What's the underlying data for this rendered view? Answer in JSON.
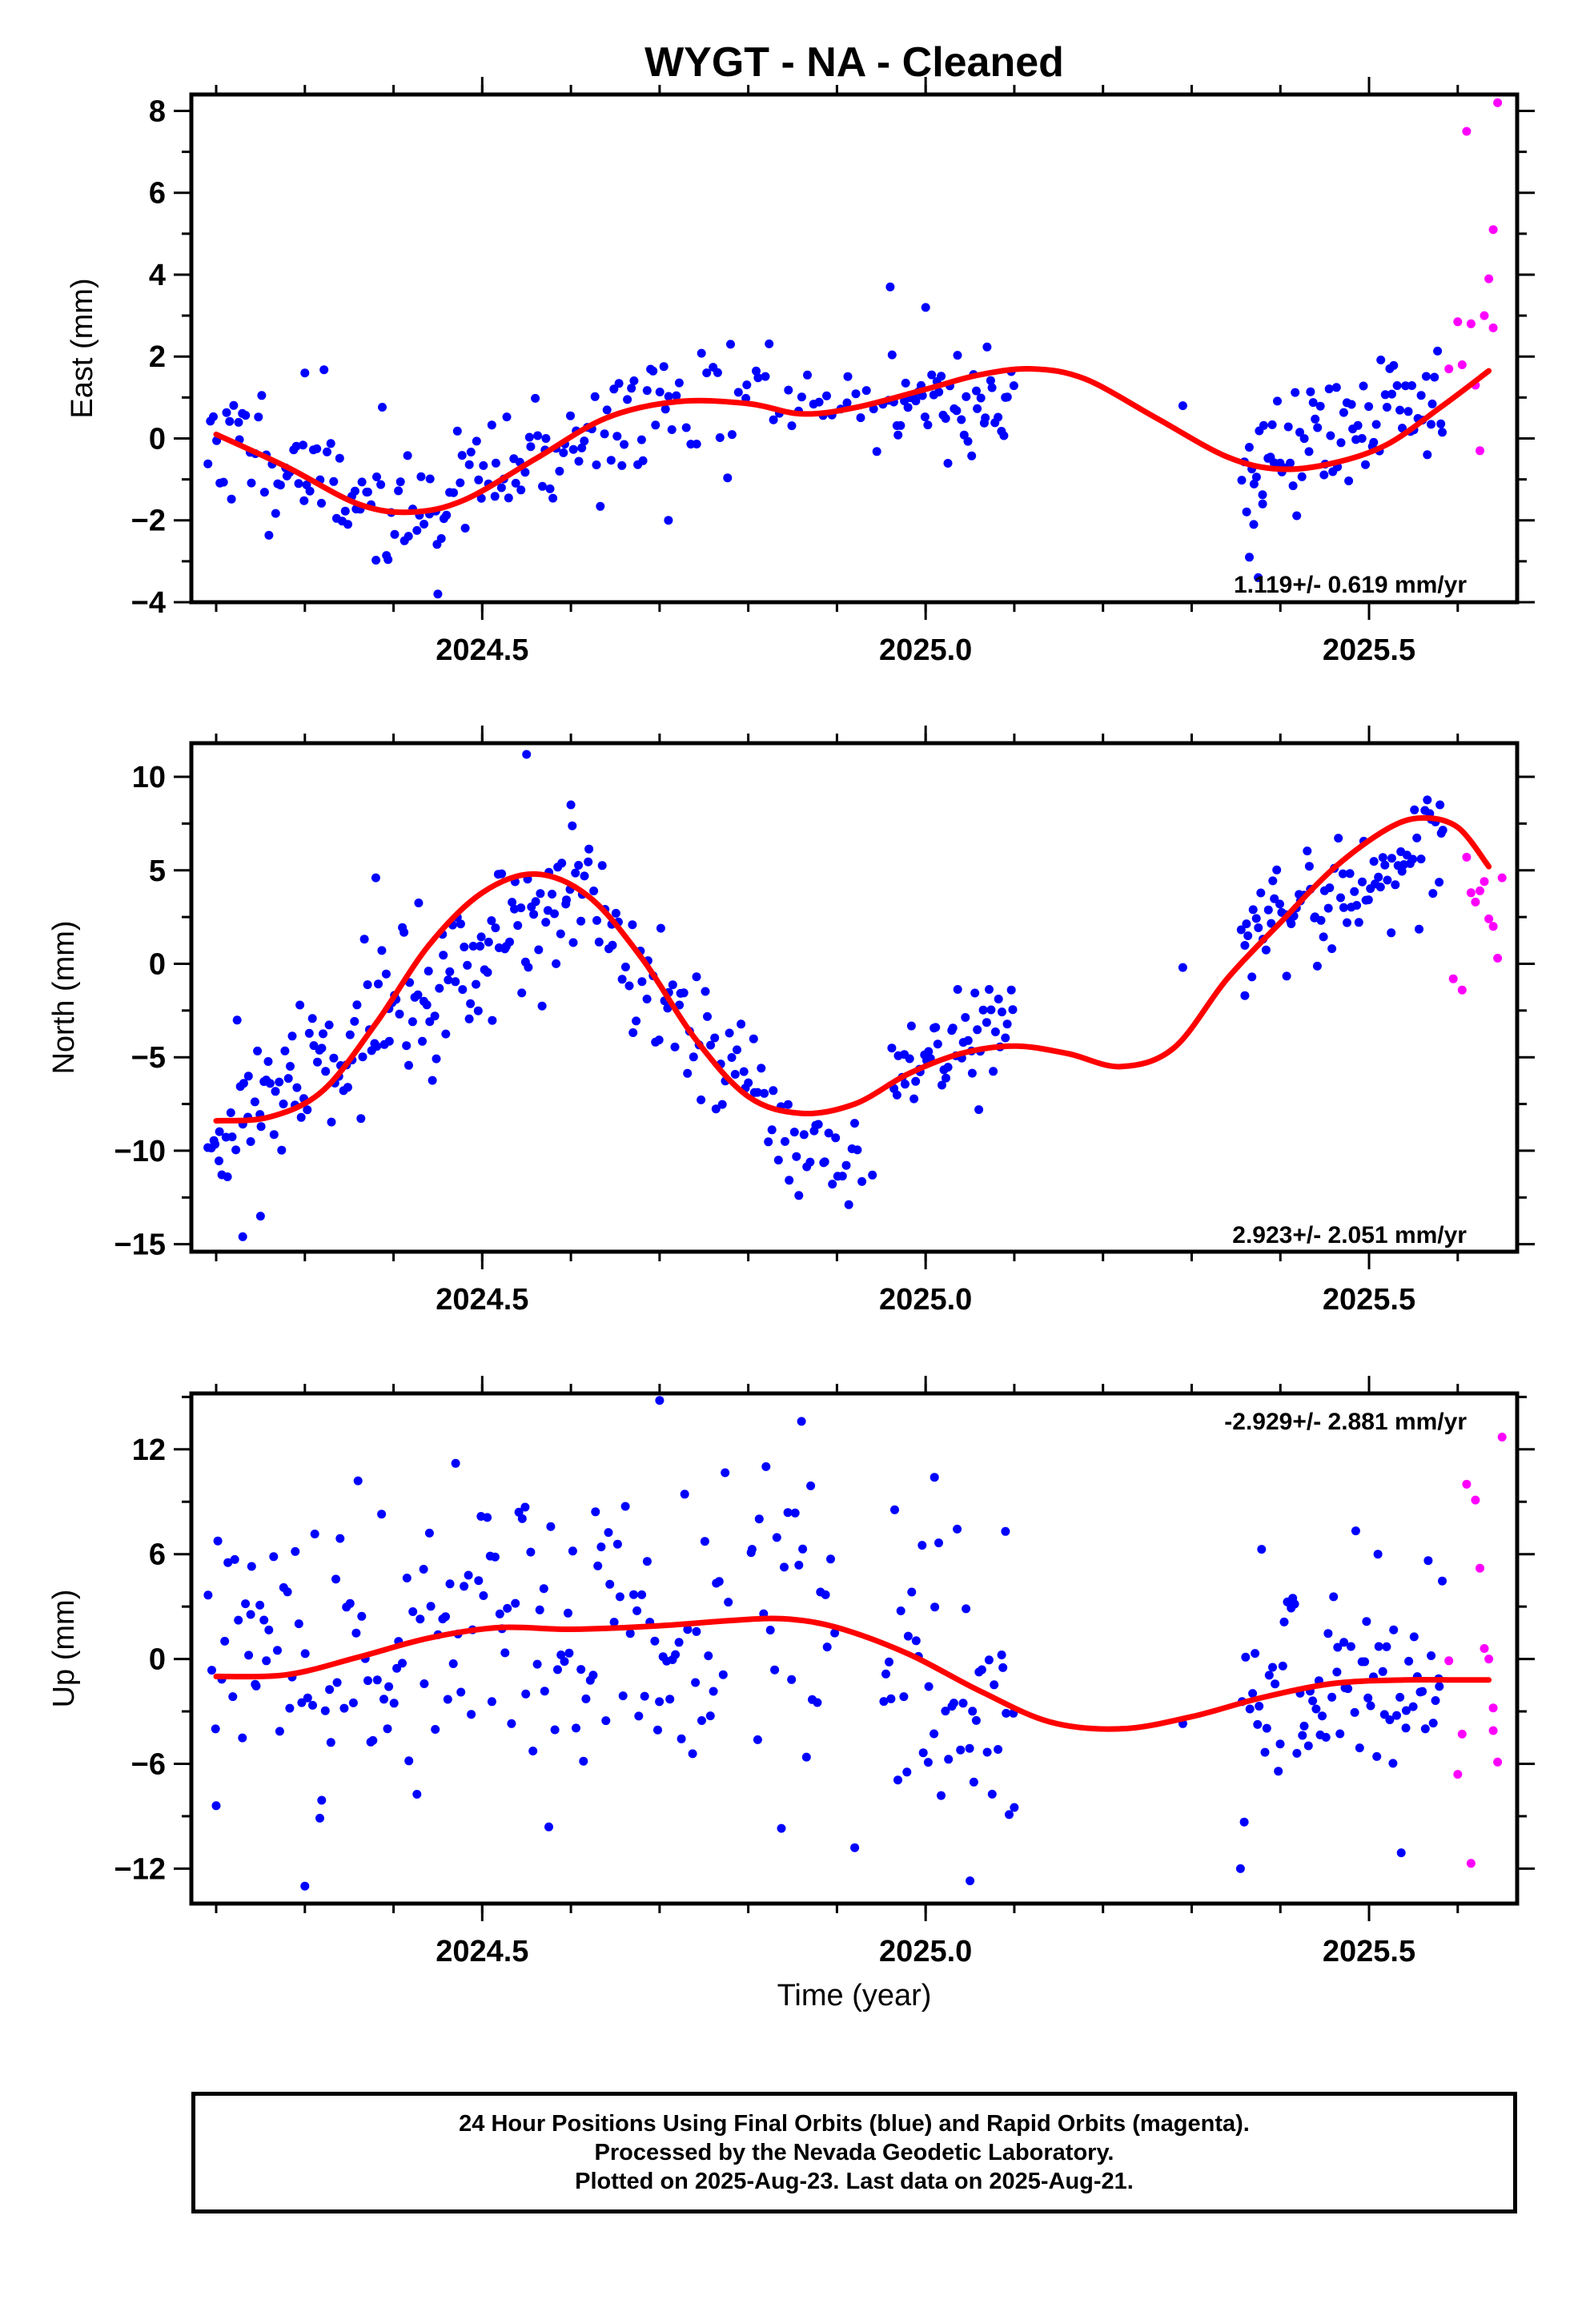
{
  "title": "WYGT  - NA - Cleaned",
  "xlabel": "Time (year)",
  "caption": [
    "24 Hour Positions Using Final Orbits (blue) and Rapid Orbits (magenta).",
    "Processed by the Nevada Geodetic Laboratory.",
    "Plotted on 2025-Aug-23. Last data on 2025-Aug-21."
  ],
  "colors": {
    "final_orbits": "#0000ff",
    "rapid_orbits": "#ff00ff",
    "model": "#ff0000",
    "frame": "#000000"
  },
  "chart_data": [
    {
      "type": "scatter",
      "ylabel": "East (mm)",
      "rate_label": "1.119+/- 0.619 mm/yr",
      "xlim": [
        2024.172,
        2025.667
      ],
      "ylim": [
        -4,
        8.4
      ],
      "xticks": [
        2024.5,
        2025.0,
        2025.5
      ],
      "xtick_labels": [
        "2024.5",
        "2025.0",
        "2025.5"
      ],
      "yticks": [
        -4,
        -2,
        0,
        2,
        4,
        6,
        8
      ],
      "ytick_labels": [
        "−4",
        "−2",
        "0",
        "2",
        "4",
        "6",
        "8"
      ],
      "model_knots": [
        [
          2024.2,
          0.1
        ],
        [
          2024.28,
          -0.7
        ],
        [
          2024.36,
          -1.6
        ],
        [
          2024.42,
          -1.8
        ],
        [
          2024.48,
          -1.5
        ],
        [
          2024.56,
          -0.5
        ],
        [
          2024.64,
          0.5
        ],
        [
          2024.72,
          0.9
        ],
        [
          2024.8,
          0.85
        ],
        [
          2024.86,
          0.6
        ],
        [
          2024.92,
          0.75
        ],
        [
          2025.0,
          1.2
        ],
        [
          2025.06,
          1.55
        ],
        [
          2025.12,
          1.7
        ],
        [
          2025.18,
          1.45
        ],
        [
          2025.26,
          0.5
        ],
        [
          2025.34,
          -0.45
        ],
        [
          2025.4,
          -0.75
        ],
        [
          2025.46,
          -0.6
        ],
        [
          2025.52,
          -0.15
        ],
        [
          2025.58,
          0.75
        ],
        [
          2025.635,
          1.65
        ]
      ],
      "segments": [
        {
          "x0": 2024.19,
          "x1": 2024.42,
          "m0": 0.1,
          "m1": -1.8,
          "n": 70,
          "spread": 0.75
        },
        {
          "x0": 2024.42,
          "x1": 2024.72,
          "m0": -1.8,
          "m1": 0.9,
          "n": 85,
          "spread": 0.7
        },
        {
          "x0": 2024.72,
          "x1": 2024.96,
          "m0": 0.9,
          "m1": 0.8,
          "n": 40,
          "spread": 0.8
        },
        {
          "x0": 2024.96,
          "x1": 2025.1,
          "m0": 1.0,
          "m1": 0.8,
          "n": 50,
          "spread": 0.7
        },
        {
          "x0": 2025.355,
          "x1": 2025.585,
          "m0": -0.6,
          "m1": 1.0,
          "n": 80,
          "spread": 0.75
        }
      ],
      "final_points": [
        [
          2024.3,
          1.6
        ],
        [
          2024.45,
          -3.8
        ],
        [
          2024.71,
          -2.0
        ],
        [
          2024.78,
          2.3
        ],
        [
          2024.96,
          3.7
        ],
        [
          2025.0,
          3.2
        ],
        [
          2025.29,
          0.8
        ],
        [
          2025.365,
          -2.9
        ],
        [
          2025.375,
          -3.4
        ],
        [
          2025.37,
          -2.1
        ],
        [
          2025.38,
          -1.6
        ]
      ],
      "rapid_points": [
        [
          2025.59,
          1.7
        ],
        [
          2025.6,
          2.85
        ],
        [
          2025.605,
          1.8
        ],
        [
          2025.61,
          7.5
        ],
        [
          2025.615,
          2.8
        ],
        [
          2025.62,
          1.3
        ],
        [
          2025.625,
          -0.3
        ],
        [
          2025.63,
          3.0
        ],
        [
          2025.635,
          3.9
        ],
        [
          2025.64,
          5.1
        ],
        [
          2025.64,
          2.7
        ],
        [
          2025.645,
          8.2
        ]
      ],
      "seed": 11
    },
    {
      "type": "scatter",
      "ylabel": "North (mm)",
      "rate_label": "2.923+/- 2.051 mm/yr",
      "xlim": [
        2024.172,
        2025.667
      ],
      "ylim": [
        -15.4,
        11.8
      ],
      "xticks": [
        2024.5,
        2025.0,
        2025.5
      ],
      "xtick_labels": [
        "2024.5",
        "2025.0",
        "2025.5"
      ],
      "yticks": [
        -15,
        -10,
        -5,
        0,
        5,
        10
      ],
      "ytick_labels": [
        "−15",
        "−10",
        "−5",
        "0",
        "5",
        "10"
      ],
      "model_knots": [
        [
          2024.2,
          -8.4
        ],
        [
          2024.26,
          -8.2
        ],
        [
          2024.32,
          -6.8
        ],
        [
          2024.38,
          -3.2
        ],
        [
          2024.44,
          1.0
        ],
        [
          2024.5,
          3.8
        ],
        [
          2024.56,
          4.8
        ],
        [
          2024.62,
          3.6
        ],
        [
          2024.68,
          0.3
        ],
        [
          2024.74,
          -4.0
        ],
        [
          2024.8,
          -7.1
        ],
        [
          2024.86,
          -8.0
        ],
        [
          2024.92,
          -7.5
        ],
        [
          2024.98,
          -5.9
        ],
        [
          2025.04,
          -4.8
        ],
        [
          2025.1,
          -4.4
        ],
        [
          2025.16,
          -4.8
        ],
        [
          2025.22,
          -5.5
        ],
        [
          2025.28,
          -4.5
        ],
        [
          2025.34,
          -0.8
        ],
        [
          2025.4,
          2.2
        ],
        [
          2025.46,
          5.1
        ],
        [
          2025.52,
          7.2
        ],
        [
          2025.56,
          7.8
        ],
        [
          2025.6,
          7.3
        ],
        [
          2025.635,
          5.2
        ]
      ],
      "segments": [
        {
          "x0": 2024.19,
          "x1": 2024.38,
          "m0": -9.5,
          "m1": -3.0,
          "n": 70,
          "spread": 1.8
        },
        {
          "x0": 2024.38,
          "x1": 2024.62,
          "m0": -3.0,
          "m1": 4.2,
          "n": 95,
          "spread": 2.0
        },
        {
          "x0": 2024.62,
          "x1": 2024.82,
          "m0": 3.0,
          "m1": -8.0,
          "n": 60,
          "spread": 1.8
        },
        {
          "x0": 2024.82,
          "x1": 2024.93,
          "m0": -9.0,
          "m1": -10.0,
          "n": 30,
          "spread": 1.4
        },
        {
          "x0": 2024.96,
          "x1": 2025.1,
          "m0": -6.0,
          "m1": -2.8,
          "n": 50,
          "spread": 1.4
        },
        {
          "x0": 2025.355,
          "x1": 2025.585,
          "m0": 0.8,
          "m1": 6.8,
          "n": 85,
          "spread": 1.4
        }
      ],
      "final_points": [
        [
          2024.23,
          -14.6
        ],
        [
          2024.25,
          -13.5
        ],
        [
          2024.38,
          4.6
        ],
        [
          2024.55,
          11.2
        ],
        [
          2024.6,
          8.5
        ],
        [
          2024.94,
          -11.3
        ],
        [
          2025.06,
          -7.8
        ],
        [
          2025.29,
          -0.2
        ],
        [
          2025.36,
          -1.7
        ],
        [
          2025.58,
          8.5
        ]
      ],
      "rapid_points": [
        [
          2025.595,
          -0.8
        ],
        [
          2025.605,
          -1.4
        ],
        [
          2025.61,
          5.7
        ],
        [
          2025.615,
          3.8
        ],
        [
          2025.62,
          3.3
        ],
        [
          2025.625,
          3.9
        ],
        [
          2025.63,
          4.4
        ],
        [
          2025.635,
          2.4
        ],
        [
          2025.64,
          2.0
        ],
        [
          2025.645,
          0.3
        ],
        [
          2025.65,
          4.6
        ]
      ],
      "seed": 29
    },
    {
      "type": "scatter",
      "ylabel": "Up (mm)",
      "rate_label": "-2.929+/- 2.881 mm/yr",
      "xlim": [
        2024.172,
        2025.667
      ],
      "ylim": [
        -14,
        15.2
      ],
      "xticks": [
        2024.5,
        2025.0,
        2025.5
      ],
      "xtick_labels": [
        "2024.5",
        "2025.0",
        "2025.5"
      ],
      "yticks": [
        -12,
        -6,
        0,
        6,
        12
      ],
      "ytick_labels": [
        "−12",
        "−6",
        "0",
        "6",
        "12"
      ],
      "model_knots": [
        [
          2024.2,
          -1.0
        ],
        [
          2024.28,
          -0.9
        ],
        [
          2024.36,
          0.1
        ],
        [
          2024.44,
          1.2
        ],
        [
          2024.52,
          1.8
        ],
        [
          2024.6,
          1.7
        ],
        [
          2024.7,
          1.9
        ],
        [
          2024.78,
          2.2
        ],
        [
          2024.84,
          2.3
        ],
        [
          2024.9,
          1.8
        ],
        [
          2024.98,
          0.3
        ],
        [
          2025.06,
          -1.8
        ],
        [
          2025.14,
          -3.6
        ],
        [
          2025.22,
          -4.0
        ],
        [
          2025.3,
          -3.3
        ],
        [
          2025.38,
          -2.2
        ],
        [
          2025.46,
          -1.4
        ],
        [
          2025.54,
          -1.2
        ],
        [
          2025.6,
          -1.2
        ],
        [
          2025.635,
          -1.2
        ]
      ],
      "segments": [
        {
          "x0": 2024.19,
          "x1": 2024.5,
          "m0": -1.0,
          "m1": 1.8,
          "n": 85,
          "spread": 4.2
        },
        {
          "x0": 2024.5,
          "x1": 2024.78,
          "m0": 1.8,
          "m1": 2.2,
          "n": 80,
          "spread": 4.3
        },
        {
          "x0": 2024.8,
          "x1": 2024.9,
          "m0": 2.2,
          "m1": 1.8,
          "n": 25,
          "spread": 4.3
        },
        {
          "x0": 2024.95,
          "x1": 2025.1,
          "m0": 0.5,
          "m1": -2.5,
          "n": 45,
          "spread": 4.0
        },
        {
          "x0": 2025.355,
          "x1": 2025.585,
          "m0": -2.2,
          "m1": -1.2,
          "n": 80,
          "spread": 3.6
        }
      ],
      "final_points": [
        [
          2024.2,
          -8.4
        ],
        [
          2024.24,
          5.3
        ],
        [
          2024.3,
          -13.0
        ],
        [
          2024.36,
          10.2
        ],
        [
          2024.47,
          11.2
        ],
        [
          2024.7,
          14.8
        ],
        [
          2024.86,
          13.6
        ],
        [
          2024.92,
          -10.8
        ],
        [
          2025.01,
          10.4
        ],
        [
          2025.05,
          -12.7
        ],
        [
          2025.09,
          7.3
        ],
        [
          2025.1,
          -8.5
        ],
        [
          2025.29,
          -3.7
        ],
        [
          2025.355,
          -12.0
        ],
        [
          2025.51,
          6.0
        ]
      ],
      "rapid_points": [
        [
          2025.59,
          -0.1
        ],
        [
          2025.6,
          -6.6
        ],
        [
          2025.605,
          -4.3
        ],
        [
          2025.61,
          10.0
        ],
        [
          2025.615,
          -11.7
        ],
        [
          2025.62,
          9.1
        ],
        [
          2025.625,
          5.2
        ],
        [
          2025.63,
          0.6
        ],
        [
          2025.635,
          0.0
        ],
        [
          2025.64,
          -2.8
        ],
        [
          2025.64,
          -4.1
        ],
        [
          2025.645,
          -5.9
        ],
        [
          2025.65,
          12.7
        ]
      ],
      "seed": 47
    }
  ]
}
